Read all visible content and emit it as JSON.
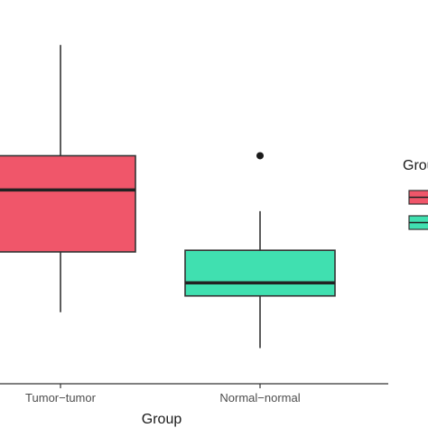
{
  "chart_data": {
    "type": "box",
    "xlabel": "Group",
    "categories": [
      "Tumor−tumor",
      "Normal−normal"
    ],
    "series": [
      {
        "category": "Tumor−tumor",
        "whisker_low": 5.2,
        "q1": 7.05,
        "median": 8.95,
        "q3": 10.0,
        "whisker_high": 13.4,
        "outliers": [],
        "color": "#f0566a"
      },
      {
        "category": "Normal−normal",
        "whisker_low": 4.1,
        "q1": 5.7,
        "median": 6.1,
        "q3": 7.1,
        "whisker_high": 8.3,
        "outliers": [
          10.0
        ],
        "color": "#40e0b0"
      }
    ],
    "ylim": [
      3.2,
      14.5
    ],
    "grid": false,
    "legend": {
      "title": "Group",
      "placement": "right",
      "colors": [
        "#f0566a",
        "#40e0b0"
      ]
    }
  }
}
